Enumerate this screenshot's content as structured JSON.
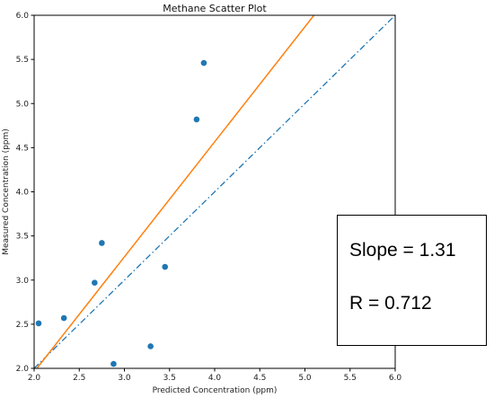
{
  "chart_data": {
    "type": "scatter",
    "title": "Methane Scatter Plot",
    "xlabel": "Predicted Concentration (ppm)",
    "ylabel": "Measured Concentration (ppm)",
    "xlim": [
      2.0,
      6.0
    ],
    "ylim": [
      2.0,
      6.0
    ],
    "xticks": [
      "2.0",
      "2.5",
      "3.0",
      "3.5",
      "4.0",
      "4.5",
      "5.0",
      "5.5",
      "6.0"
    ],
    "yticks": [
      "2.0",
      "2.5",
      "3.0",
      "3.5",
      "4.0",
      "4.5",
      "5.0",
      "5.5",
      "6.0"
    ],
    "grid": false,
    "points": {
      "x": [
        2.05,
        2.33,
        2.67,
        2.75,
        2.88,
        3.29,
        3.45,
        3.8,
        3.88
      ],
      "y": [
        2.51,
        2.57,
        2.97,
        3.42,
        2.05,
        2.25,
        3.15,
        4.82,
        5.46
      ],
      "color": "#1f77b4"
    },
    "fit_line": {
      "slope": 1.31,
      "x": [
        2.0,
        5.1
      ],
      "y": [
        1.96,
        6.0
      ],
      "color": "#ff7f0e"
    },
    "reference_line": {
      "x": [
        2.0,
        6.0
      ],
      "y": [
        2.0,
        6.0
      ],
      "style": "dash-dot",
      "color": "#1f77b4"
    }
  },
  "stats": {
    "slope_text": "Slope = 1.31",
    "r_text": "R = 0.712"
  }
}
